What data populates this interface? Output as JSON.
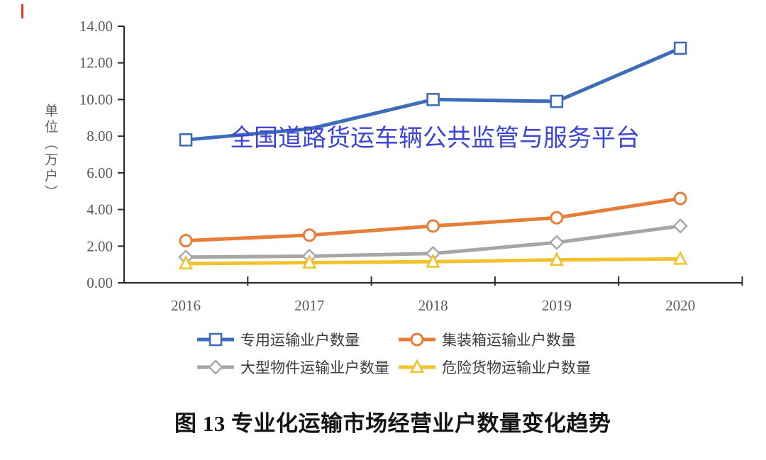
{
  "watermark": {
    "text": "全国道路货运车辆公共监管与服务平台",
    "color": "#3d46d2"
  },
  "caption": "图 13 专业化运输市场经营业户数量变化趋势",
  "chart_data": {
    "type": "line",
    "title": "",
    "xlabel": "",
    "ylabel": "单位（万户）",
    "ylim": [
      0,
      14
    ],
    "y_tick_labels": [
      "14.00",
      "12.00",
      "10.00",
      "8.00",
      "6.00",
      "4.00",
      "2.00",
      "0.00"
    ],
    "categories": [
      "2016",
      "2017",
      "2018",
      "2019",
      "2020"
    ],
    "grid": false,
    "legend_position": "bottom",
    "axis_color": "#2b2b2b",
    "tick_label_color": "#595959",
    "series": [
      {
        "name": "专用运输业户数量",
        "marker": "square",
        "color": "#3e6cb8",
        "values": [
          7.8,
          8.4,
          10.0,
          9.9,
          12.8
        ],
        "marker_hidden_at": [
          1
        ]
      },
      {
        "name": "集装箱运输业户数量",
        "marker": "circle",
        "color": "#e67e39",
        "values": [
          2.3,
          2.6,
          3.1,
          3.55,
          4.6
        ],
        "marker_hidden_at": []
      },
      {
        "name": "大型物件运输业户数量",
        "marker": "diamond",
        "color": "#a6a6a6",
        "values": [
          1.4,
          1.45,
          1.6,
          2.2,
          3.1
        ],
        "marker_hidden_at": []
      },
      {
        "name": "危险货物运输业户数量",
        "marker": "triangle",
        "color": "#f2c12e",
        "values": [
          1.05,
          1.1,
          1.15,
          1.25,
          1.3
        ],
        "marker_hidden_at": []
      }
    ]
  }
}
